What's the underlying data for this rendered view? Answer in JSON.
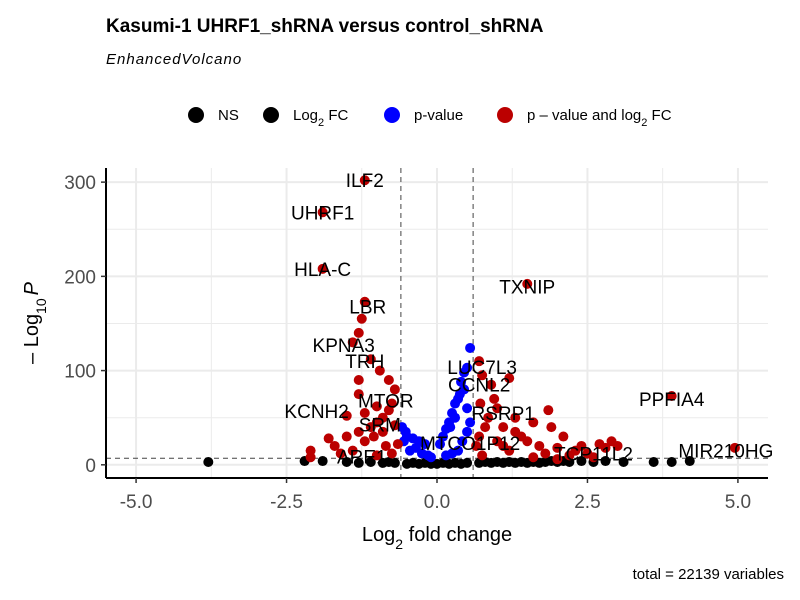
{
  "title": "Kasumi-1 UHRF1_shRNA versus control_shRNA",
  "subtitle": "EnhancedVolcano",
  "caption": "total = 22139 variables",
  "colors": {
    "ns": "#000000",
    "log2fc": "#000000",
    "pvalue": "#0000ff",
    "both": "#bb0000",
    "grid": "#ebebeb"
  },
  "legend": [
    {
      "key": "ns",
      "label": "NS"
    },
    {
      "key": "log2fc",
      "label_main": "Log",
      "label_sub": "2",
      "label_rest": " FC"
    },
    {
      "key": "pvalue",
      "label": "p-value"
    },
    {
      "key": "both",
      "label_main": "p – value and log",
      "label_sub": "2",
      "label_rest": " FC"
    }
  ],
  "chart_data": {
    "type": "scatter",
    "title": "Kasumi-1 UHRF1_shRNA versus control_shRNA",
    "subtitle": "EnhancedVolcano",
    "xlabel": {
      "main": "Log",
      "sub": "2",
      "rest": " fold change"
    },
    "ylabel": {
      "prefix": "– Log",
      "sub": "10",
      "italic": "P"
    },
    "xlim": [
      -5.5,
      5.5
    ],
    "ylim": [
      -14,
      315
    ],
    "x_ticks": [
      -5.0,
      -2.5,
      0.0,
      2.5,
      5.0
    ],
    "x_tick_labels": [
      "-5.0",
      "-2.5",
      "0.0",
      "2.5",
      "5.0"
    ],
    "y_ticks": [
      0,
      100,
      200,
      300
    ],
    "y_tick_labels": [
      "0",
      "100",
      "200",
      "300"
    ],
    "fc_cutoffs": [
      -0.6,
      0.6
    ],
    "p_cutoff": 7,
    "grid": true,
    "legend_position": "top",
    "series": [
      {
        "key": "ns",
        "points": [
          [
            -3.8,
            3
          ],
          [
            -2.2,
            4
          ],
          [
            -1.9,
            4
          ],
          [
            -1.5,
            3
          ],
          [
            -1.3,
            2
          ],
          [
            -1.1,
            3
          ],
          [
            -0.9,
            2
          ],
          [
            -0.8,
            3
          ],
          [
            -0.7,
            2
          ],
          [
            -0.5,
            1
          ],
          [
            -0.4,
            2
          ],
          [
            -0.3,
            1
          ],
          [
            -0.2,
            2
          ],
          [
            -0.1,
            1
          ],
          [
            0.0,
            1
          ],
          [
            0.1,
            2
          ],
          [
            0.2,
            1
          ],
          [
            0.3,
            2
          ],
          [
            0.4,
            1
          ],
          [
            0.5,
            2
          ],
          [
            0.7,
            2
          ],
          [
            0.8,
            3
          ],
          [
            0.9,
            2
          ],
          [
            1.0,
            3
          ],
          [
            1.1,
            2
          ],
          [
            1.2,
            3
          ],
          [
            1.3,
            2
          ],
          [
            1.4,
            3
          ],
          [
            1.5,
            2
          ],
          [
            1.6,
            3
          ],
          [
            1.7,
            2
          ],
          [
            1.8,
            3
          ],
          [
            1.9,
            4
          ],
          [
            2.0,
            3
          ],
          [
            2.1,
            4
          ],
          [
            2.2,
            3
          ],
          [
            2.4,
            4
          ],
          [
            2.6,
            3
          ],
          [
            2.8,
            4
          ],
          [
            3.1,
            3
          ],
          [
            3.6,
            3
          ],
          [
            3.9,
            3
          ],
          [
            4.2,
            4
          ]
        ]
      },
      {
        "key": "pvalue",
        "points": [
          [
            0.55,
            124
          ],
          [
            0.5,
            103
          ],
          [
            0.45,
            98
          ],
          [
            0.4,
            88
          ],
          [
            0.35,
            70
          ],
          [
            0.3,
            65
          ],
          [
            0.25,
            55
          ],
          [
            0.2,
            45
          ],
          [
            0.15,
            38
          ],
          [
            0.1,
            30
          ],
          [
            0.05,
            22
          ],
          [
            0.45,
            80
          ],
          [
            0.38,
            75
          ],
          [
            0.3,
            50
          ],
          [
            0.22,
            40
          ],
          [
            0.5,
            60
          ],
          [
            -0.2,
            22
          ],
          [
            -0.3,
            25
          ],
          [
            -0.4,
            28
          ],
          [
            -0.5,
            30
          ],
          [
            -0.55,
            25
          ],
          [
            -0.45,
            15
          ],
          [
            -0.35,
            18
          ],
          [
            -0.25,
            12
          ],
          [
            -0.15,
            10
          ],
          [
            -0.1,
            8
          ],
          [
            0.35,
            15
          ],
          [
            0.25,
            12
          ],
          [
            0.15,
            10
          ],
          [
            0.42,
            25
          ],
          [
            0.5,
            35
          ],
          [
            0.55,
            45
          ],
          [
            -0.52,
            35
          ],
          [
            -0.58,
            40
          ]
        ]
      },
      {
        "key": "both",
        "points": [
          [
            -1.2,
            302
          ],
          [
            -1.9,
            268
          ],
          [
            -1.9,
            208
          ],
          [
            -1.2,
            173
          ],
          [
            -1.25,
            155
          ],
          [
            -1.4,
            130
          ],
          [
            -1.1,
            112
          ],
          [
            -1.3,
            140
          ],
          [
            -0.95,
            100
          ],
          [
            -0.8,
            90
          ],
          [
            -0.7,
            80
          ],
          [
            -0.75,
            65
          ],
          [
            -0.8,
            58
          ],
          [
            -0.9,
            50
          ],
          [
            -1.0,
            45
          ],
          [
            -1.1,
            40
          ],
          [
            -1.3,
            35
          ],
          [
            -1.5,
            30
          ],
          [
            -1.7,
            20
          ],
          [
            -2.1,
            15
          ],
          [
            -2.1,
            8
          ],
          [
            -1.6,
            12
          ],
          [
            -1.2,
            25
          ],
          [
            -0.9,
            35
          ],
          [
            -0.7,
            42
          ],
          [
            -0.65,
            22
          ],
          [
            -0.85,
            20
          ],
          [
            -1.3,
            75
          ],
          [
            -1.3,
            90
          ],
          [
            -1.0,
            62
          ],
          [
            -1.05,
            30
          ],
          [
            -1.4,
            15
          ],
          [
            -1.0,
            10
          ],
          [
            -0.75,
            12
          ],
          [
            -1.8,
            28
          ],
          [
            -1.5,
            52
          ],
          [
            -1.2,
            55
          ],
          [
            1.5,
            192
          ],
          [
            3.9,
            73
          ],
          [
            4.95,
            18
          ],
          [
            0.7,
            110
          ],
          [
            0.75,
            95
          ],
          [
            1.2,
            92
          ],
          [
            0.9,
            85
          ],
          [
            1.0,
            60
          ],
          [
            0.85,
            50
          ],
          [
            0.8,
            40
          ],
          [
            0.7,
            30
          ],
          [
            0.65,
            20
          ],
          [
            0.75,
            10
          ],
          [
            1.3,
            35
          ],
          [
            1.5,
            25
          ],
          [
            1.7,
            20
          ],
          [
            1.8,
            12
          ],
          [
            2.0,
            18
          ],
          [
            2.2,
            10
          ],
          [
            2.3,
            15
          ],
          [
            2.4,
            20
          ],
          [
            2.5,
            12
          ],
          [
            2.7,
            22
          ],
          [
            2.9,
            25
          ],
          [
            2.8,
            18
          ],
          [
            3.0,
            20
          ],
          [
            1.85,
            58
          ],
          [
            1.6,
            45
          ],
          [
            1.1,
            40
          ],
          [
            1.4,
            30
          ],
          [
            1.0,
            25
          ],
          [
            1.2,
            15
          ],
          [
            0.95,
            70
          ],
          [
            0.72,
            65
          ],
          [
            1.3,
            50
          ],
          [
            1.9,
            40
          ],
          [
            2.1,
            30
          ],
          [
            1.6,
            8
          ],
          [
            2.0,
            6
          ],
          [
            2.6,
            8
          ],
          [
            1.1,
            20
          ]
        ]
      }
    ],
    "labels": [
      {
        "text": "ILF2",
        "x": -1.2,
        "y": 302,
        "ha": "center"
      },
      {
        "text": "UHRF1",
        "x": -1.9,
        "y": 268,
        "ha": "center"
      },
      {
        "text": "HLA-C",
        "x": -1.9,
        "y": 208,
        "ha": "center"
      },
      {
        "text": "LBR",
        "x": -1.15,
        "y": 168,
        "ha": "center"
      },
      {
        "text": "TXNIP",
        "x": 1.5,
        "y": 189,
        "ha": "center"
      },
      {
        "text": "KPNA3",
        "x": -1.55,
        "y": 127,
        "ha": "center"
      },
      {
        "text": "TRH",
        "x": -1.2,
        "y": 110,
        "ha": "center"
      },
      {
        "text": "LUC7L3",
        "x": 0.75,
        "y": 104,
        "ha": "center"
      },
      {
        "text": "CCNL2",
        "x": 0.7,
        "y": 85,
        "ha": "center"
      },
      {
        "text": "MTOR",
        "x": -0.85,
        "y": 68,
        "ha": "center"
      },
      {
        "text": "KCNH2",
        "x": -2.0,
        "y": 57,
        "ha": "center"
      },
      {
        "text": "PPFIA4",
        "x": 3.9,
        "y": 70,
        "ha": "center"
      },
      {
        "text": "RSRP1",
        "x": 1.1,
        "y": 55,
        "ha": "center"
      },
      {
        "text": "SRM",
        "x": -0.95,
        "y": 43,
        "ha": "center"
      },
      {
        "text": "MTCO1P12",
        "x": 0.55,
        "y": 23,
        "ha": "center"
      },
      {
        "text": "TCP11L2",
        "x": 2.6,
        "y": 12,
        "ha": "center"
      },
      {
        "text": "MIR210HG",
        "x": 4.8,
        "y": 15,
        "ha": "center"
      },
      {
        "text": "ARE1",
        "x": -1.25,
        "y": 9,
        "ha": "center"
      }
    ]
  }
}
